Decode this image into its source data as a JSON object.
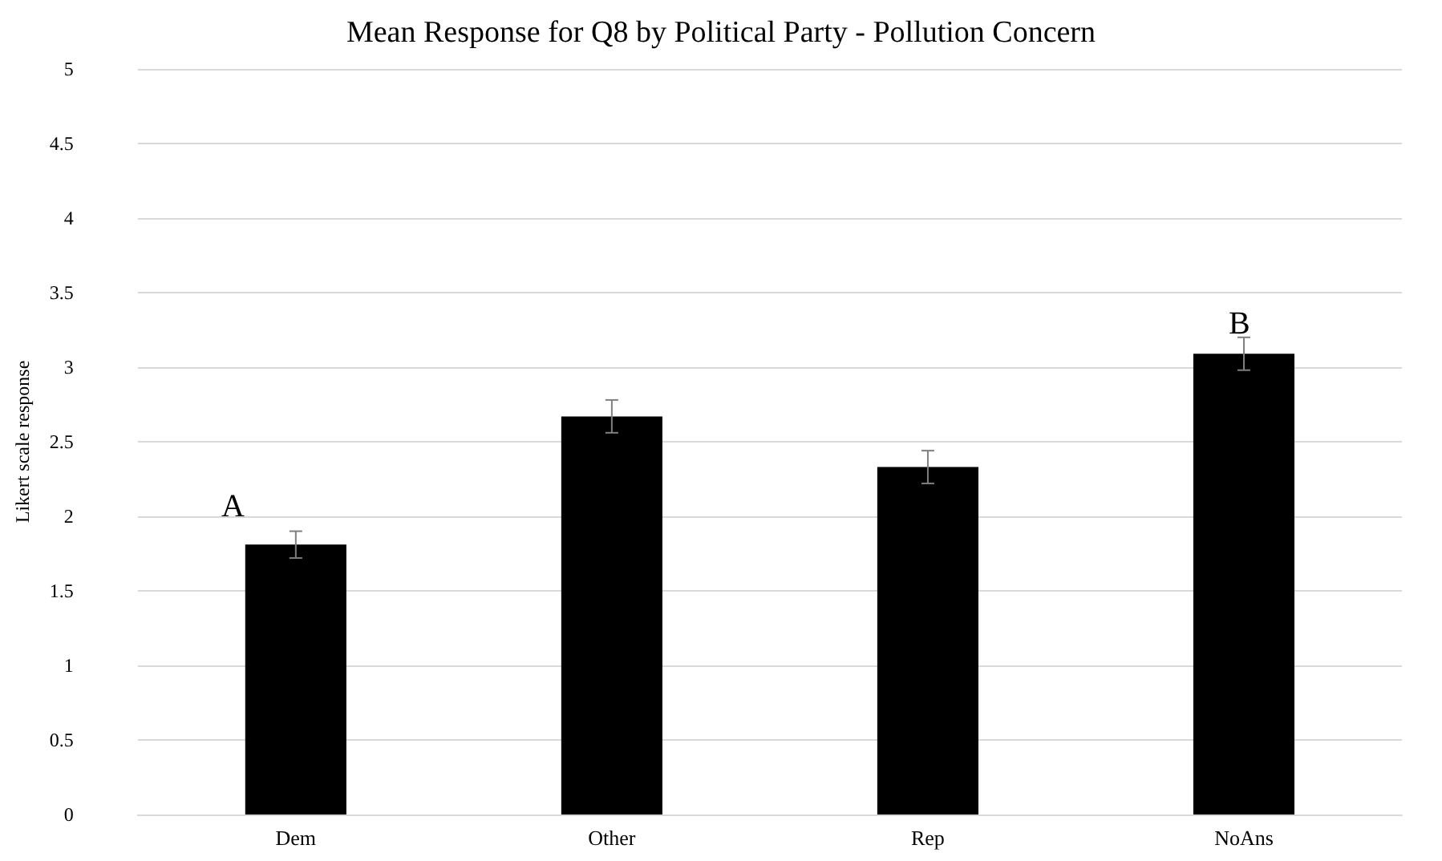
{
  "chart_data": {
    "type": "bar",
    "title": "Mean Response for Q8 by Political Party - Pollution Concern",
    "ylabel": "Likert scale response",
    "categories": [
      "Dem",
      "Other",
      "Rep",
      "NoAns"
    ],
    "values": [
      1.81,
      2.67,
      2.33,
      3.09
    ],
    "errors": [
      0.09,
      0.11,
      0.11,
      0.11
    ],
    "color": "#000000",
    "ylim": [
      0,
      5
    ],
    "yticks": [
      0,
      0.5,
      1,
      1.5,
      2,
      2.5,
      3,
      3.5,
      4,
      4.5,
      5
    ],
    "grid": "y",
    "annotations": [
      "A",
      "B"
    ]
  }
}
